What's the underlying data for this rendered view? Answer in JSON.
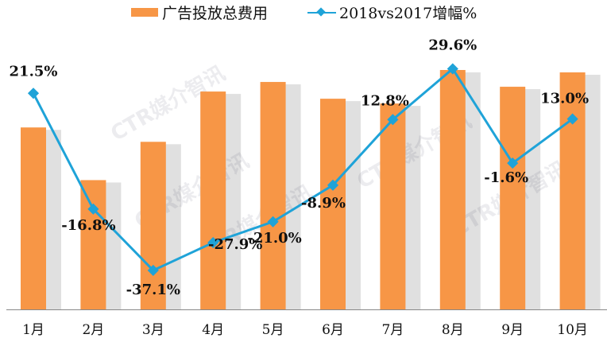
{
  "chart_data": {
    "type": "bar+line",
    "categories": [
      "1月",
      "2月",
      "3月",
      "4月",
      "5月",
      "6月",
      "7月",
      "8月",
      "9月",
      "10月"
    ],
    "series": [
      {
        "name": "广告投放总费用",
        "type": "bar",
        "color": "#F79646",
        "values": [
          76,
          54,
          70,
          91,
          95,
          88,
          86,
          100,
          93,
          99
        ]
      },
      {
        "name": "2018vs2017增幅%",
        "type": "line",
        "color": "#1FA3D8",
        "marker": "diamond",
        "values": [
          21.5,
          -16.8,
          -37.1,
          -27.9,
          -21.0,
          -8.9,
          12.8,
          29.6,
          -1.6,
          13.0
        ],
        "labels": [
          "21.5%",
          "-16.8%",
          "-37.1%",
          "-27.9%",
          "-21.0%",
          "-8.9%",
          "12.8%",
          "29.6%",
          "-1.6%",
          "13.0%"
        ]
      }
    ],
    "bar_ylim": [
      0,
      100
    ],
    "line_ylim": [
      -50,
      40
    ],
    "grid": false,
    "legend": "top",
    "title": "",
    "xlabel": "",
    "ylabel": ""
  },
  "watermark": "CTR媒介智讯"
}
